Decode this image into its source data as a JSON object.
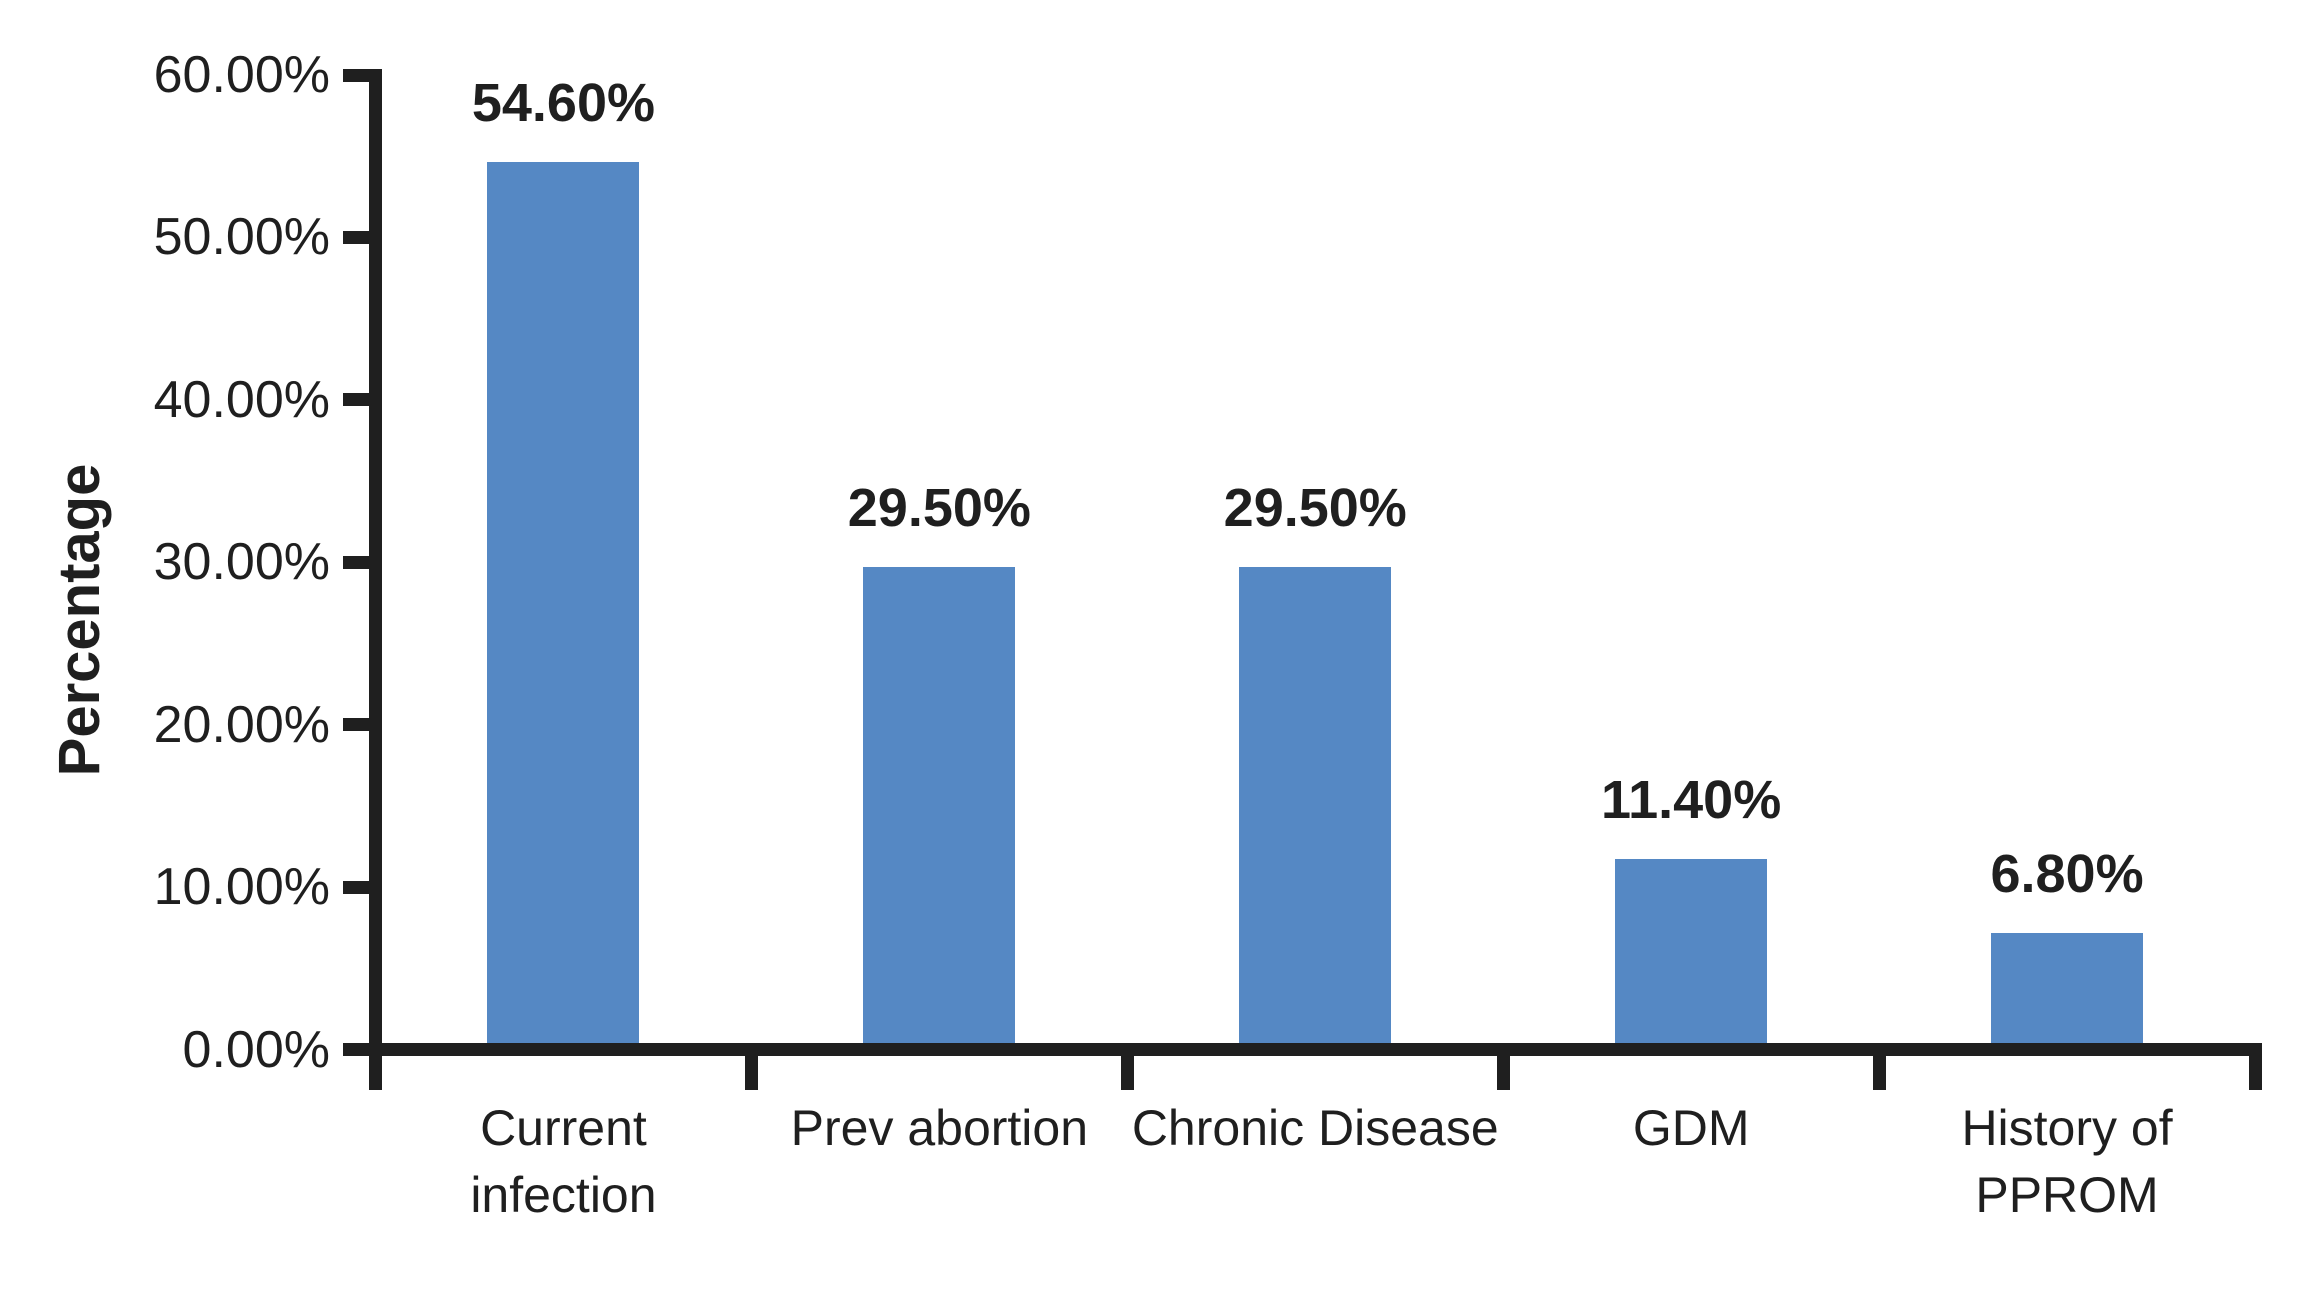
{
  "chart_data": {
    "type": "bar",
    "title": "",
    "ylabel": "Percentage",
    "xlabel": "",
    "ylim": [
      0,
      60
    ],
    "ytick_step": 10,
    "yticks": [
      "0.00%",
      "10.00%",
      "20.00%",
      "30.00%",
      "40.00%",
      "50.00%",
      "60.00%"
    ],
    "categories": [
      "Current infection",
      "Prev abortion",
      "Chronic Disease",
      "GDM",
      "History of PPROM"
    ],
    "category_lines": [
      [
        "Current",
        "infection"
      ],
      [
        "Prev abortion"
      ],
      [
        "Chronic Disease"
      ],
      [
        "GDM"
      ],
      [
        "History of",
        "PPROM"
      ]
    ],
    "values": [
      54.6,
      29.5,
      29.5,
      11.4,
      6.8
    ],
    "data_labels": [
      "54.60%",
      "29.50%",
      "29.50%",
      "11.40%",
      "6.80%"
    ],
    "grid": false,
    "legend_position": "none",
    "bar_color": "#5588C4",
    "axis_color": "#1f1f1f",
    "text_color": "#1f1f1f",
    "background": "#ffffff"
  }
}
